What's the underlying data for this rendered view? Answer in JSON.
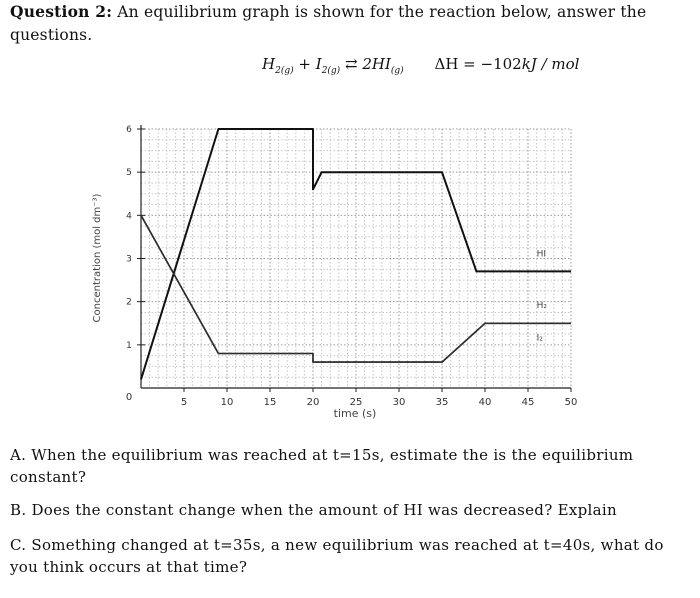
{
  "question": {
    "number_label": "Question 2:",
    "prompt": "An equilibrium graph is shown for the reaction below, answer the questions."
  },
  "reaction": {
    "lhs_H": "H",
    "lhs_H_sub": "2(g)",
    "plus": "+",
    "lhs_I": "I",
    "lhs_I_sub": "2(g)",
    "arrow": "⇄",
    "rhs": "2HI",
    "rhs_sub": "(g)",
    "delta_h": "ΔH = −102",
    "delta_h_unit": "kJ / mol"
  },
  "chart_data": {
    "type": "line",
    "xlabel": "time (s)",
    "ylabel": "Concentration (mol dm⁻³)",
    "x_ticks": [
      "0",
      "5",
      "10",
      "15",
      "20",
      "25",
      "30",
      "35",
      "40",
      "45",
      "50"
    ],
    "y_ticks": [
      "1",
      "2",
      "3",
      "4",
      "5",
      "6"
    ],
    "xlim": [
      0,
      50
    ],
    "ylim": [
      0,
      6
    ],
    "grid": true,
    "series": [
      {
        "name": "HI",
        "points": [
          [
            0,
            0.2
          ],
          [
            9,
            6
          ],
          [
            20,
            6
          ],
          [
            20,
            4.6
          ],
          [
            21,
            5
          ],
          [
            35,
            5
          ],
          [
            39,
            2.7
          ],
          [
            50,
            2.7
          ]
        ]
      },
      {
        "name": "H₂",
        "points": [
          [
            0,
            4
          ],
          [
            9,
            0.8
          ],
          [
            20,
            0.8
          ],
          [
            20,
            0.6
          ],
          [
            35,
            0.6
          ],
          [
            40,
            1.5
          ],
          [
            50,
            1.5
          ]
        ]
      },
      {
        "name": "I₂",
        "points": [
          [
            0,
            4
          ],
          [
            9,
            0.8
          ],
          [
            20,
            0.8
          ],
          [
            20,
            0.6
          ],
          [
            35,
            0.6
          ],
          [
            40,
            1.5
          ],
          [
            50,
            1.5
          ]
        ]
      }
    ],
    "labels": [
      {
        "text": "HI",
        "x": 46,
        "y": 3.05
      },
      {
        "text": "H₂",
        "x": 46,
        "y": 1.85
      },
      {
        "text": "I₂",
        "x": 46,
        "y": 1.1
      }
    ]
  },
  "parts": [
    {
      "id": "A",
      "text": "A. When the equilibrium was reached at t=15s, estimate the is the equilibrium constant?"
    },
    {
      "id": "B",
      "text": "B. Does the constant change when the amount of HI was decreased? Explain"
    },
    {
      "id": "C",
      "text": "C. Something changed at t=35s, a new equilibrium was reached at t=40s, what do you think occurs at that time?"
    }
  ]
}
